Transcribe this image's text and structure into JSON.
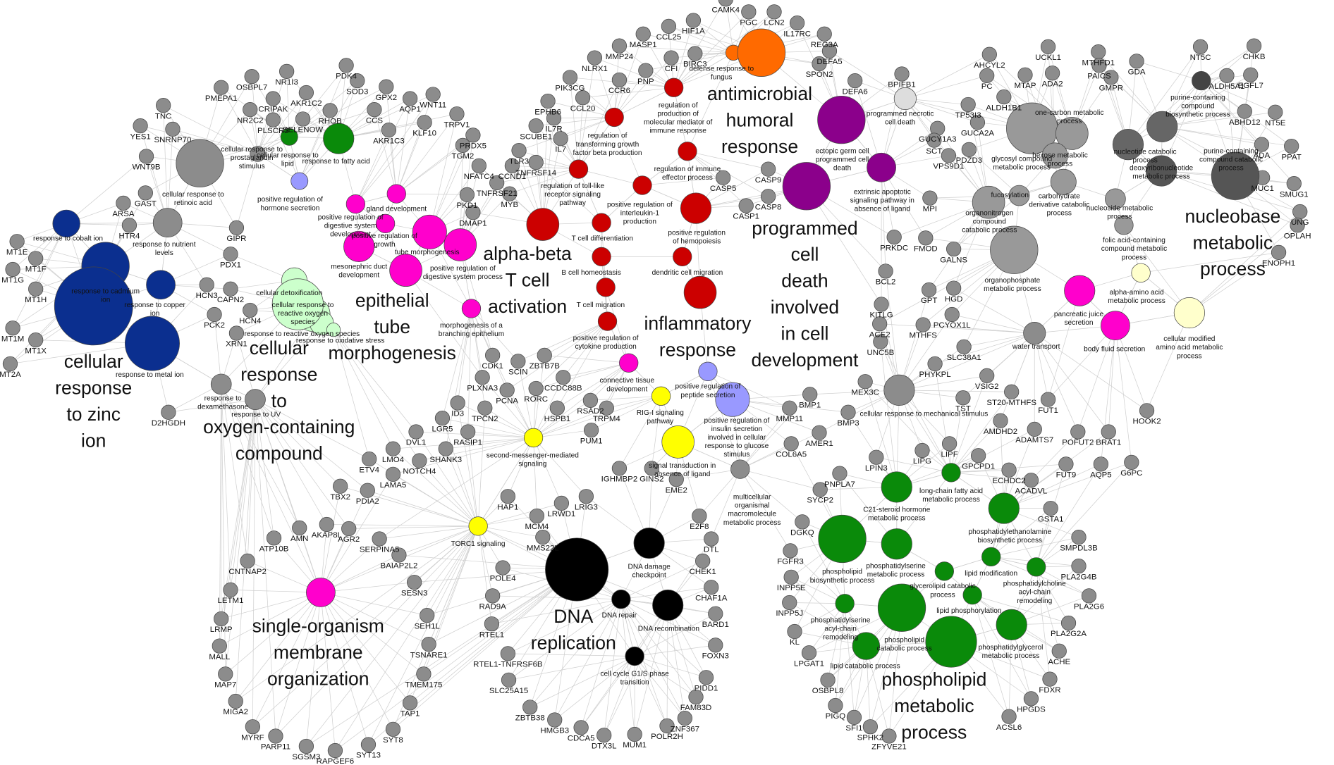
{
  "gene_color": "#8c8c8c",
  "clusters": [
    {
      "caption": [
        "cellular",
        "response",
        "to zinc",
        "ion"
      ],
      "color": "#0b2f8f"
    },
    {
      "caption": [
        "antimicrobial",
        "humoral",
        "response"
      ],
      "color": "#ff6a00"
    },
    {
      "caption": [
        "programmed",
        "cell",
        "death",
        "involved",
        "in cell",
        "development"
      ],
      "color": "#8b008b"
    },
    {
      "caption": [
        "alpha-beta",
        "T cell",
        "activation"
      ],
      "color": "#cc0000"
    },
    {
      "caption": [
        "inflammatory",
        "response"
      ],
      "color": "#cc0000"
    },
    {
      "caption": [
        "epithelial",
        "tube",
        "morphogenesis"
      ],
      "color": "#ff00cc"
    },
    {
      "caption": [
        "cellular",
        "response",
        "to",
        "oxygen-containing",
        "compound"
      ],
      "color": "#ccffcc"
    },
    {
      "caption": [
        "nucleobase",
        "metabolic",
        "process"
      ],
      "color": "#555555"
    },
    {
      "caption": [
        "DNA",
        "replication"
      ],
      "color": "#000000"
    },
    {
      "caption": [
        "single-organism",
        "membrane",
        "organization"
      ],
      "color": "#ff00cc"
    },
    {
      "caption": [
        "phospholipid",
        "metabolic",
        "process"
      ],
      "color": "#0a8a0a"
    }
  ],
  "terms": [
    {
      "label": [
        "response to cobalt ion"
      ],
      "color": "#0b2f8f"
    },
    {
      "label": [
        "response to cadmium",
        "ion"
      ],
      "color": "#0b2f8f"
    },
    {
      "label": [
        "response to copper",
        "ion"
      ],
      "color": "#0b2f8f"
    },
    {
      "label": [
        "response to metal ion"
      ],
      "color": "#0b2f8f"
    },
    {
      "label": [
        "cellular detoxification"
      ],
      "color": "#ccffcc"
    },
    {
      "label": [
        "cellular response to",
        "reactive oxygen",
        "species"
      ],
      "color": "#ccffcc"
    },
    {
      "label": [
        "response to reactive oxygen species"
      ],
      "color": "#ccffcc"
    },
    {
      "label": [
        "response to oxidative stress"
      ],
      "color": "#ccffcc"
    },
    {
      "label": [
        "positive regulation of",
        "hormone secretion"
      ],
      "color": "#9999ff"
    },
    {
      "label": [
        "positive regulation of",
        "peptide secretion"
      ],
      "color": "#9999ff"
    },
    {
      "label": [
        "positive regulation of",
        "insulin secretion",
        "involved in cellular",
        "response to glucose",
        "stimulus"
      ],
      "color": "#9999ff"
    },
    {
      "label": [
        "cellular response to",
        "lipid"
      ],
      "color": "#0a8a0a"
    },
    {
      "label": [
        "response to fatty acid"
      ],
      "color": "#0a8a0a"
    },
    {
      "label": [
        "gland development"
      ],
      "color": "#ff00cc"
    },
    {
      "label": [
        "positive regulation of",
        "digestive system",
        "development"
      ],
      "color": "#ff00cc"
    },
    {
      "label": [
        "positive regulation of",
        "growth"
      ],
      "color": "#ff00cc"
    },
    {
      "label": [
        "tube morphogenesis"
      ],
      "color": "#ff00cc"
    },
    {
      "label": [
        "mesonephric duct",
        "development"
      ],
      "color": "#ff00cc"
    },
    {
      "label": [
        "positive regulation of",
        "digestive system process"
      ],
      "color": "#ff00cc"
    },
    {
      "label": [
        "morphogenesis of a",
        "branching epithelium"
      ],
      "color": "#ff00cc"
    },
    {
      "label": [
        "connective tissue",
        "development"
      ],
      "color": "#ff00cc"
    },
    {
      "label": [
        "pancreatic juice",
        "secretion"
      ],
      "color": "#ff00cc"
    },
    {
      "label": [
        "body fluid secretion"
      ],
      "color": "#ff00cc"
    },
    {
      "label": [
        "regulation of",
        "production of",
        "molecular mediator of",
        "immune response"
      ],
      "color": "#cc0000"
    },
    {
      "label": [
        "regulation of",
        "transforming growth",
        "factor beta production"
      ],
      "color": "#cc0000"
    },
    {
      "label": [
        "regulation of immune",
        "effector process"
      ],
      "color": "#cc0000"
    },
    {
      "label": [
        "regulation of toll-like",
        "receptor signaling",
        "pathway"
      ],
      "color": "#cc0000"
    },
    {
      "label": [
        "positive regulation of",
        "interleukin-1",
        "production"
      ],
      "color": "#cc0000"
    },
    {
      "label": [
        "positive regulation",
        "of hemopoiesis"
      ],
      "color": "#cc0000"
    },
    {
      "label": [
        "T cell differentiation"
      ],
      "color": "#cc0000"
    },
    {
      "label": [
        "B cell homeostasis"
      ],
      "color": "#cc0000"
    },
    {
      "label": [
        "dendritic cell migration"
      ],
      "color": "#cc0000"
    },
    {
      "label": [
        "T cell migration"
      ],
      "color": "#cc0000"
    },
    {
      "label": [
        "positive regulation of",
        "cytokine production"
      ],
      "color": "#cc0000"
    },
    {
      "label": [
        "defense response to",
        "fungus"
      ],
      "color": "#ff6a00"
    },
    {
      "label": [
        "ectopic germ cell",
        "programmed cell",
        "death"
      ],
      "color": "#8b008b"
    },
    {
      "label": [
        "extrinsic apoptotic",
        "signaling pathway in",
        "absence of ligand"
      ],
      "color": "#8b008b"
    },
    {
      "label": [
        "programmed necrotic",
        "cell death"
      ],
      "color": "#dddddd"
    },
    {
      "label": [
        "cellular response to",
        "retinoic acid"
      ],
      "color": "#8c8c8c"
    },
    {
      "label": [
        "cellular response to",
        "prostaglandin",
        "stimulus"
      ],
      "color": "#8c8c8c"
    },
    {
      "label": [
        "response to nutrient",
        "levels"
      ],
      "color": "#8c8c8c"
    },
    {
      "label": [
        "response to",
        "dexamethasone"
      ],
      "color": "#8c8c8c"
    },
    {
      "label": [
        "response to UV"
      ],
      "color": "#8c8c8c"
    },
    {
      "label": [
        "cellular response to mechanical stimulus"
      ],
      "color": "#8c8c8c"
    },
    {
      "label": [
        "water transport"
      ],
      "color": "#8c8c8c"
    },
    {
      "label": [
        "multicellular",
        "organismal",
        "macromolecule",
        "metabolic process"
      ],
      "color": "#8c8c8c"
    },
    {
      "label": [
        "glycosyl compound",
        "metabolic process"
      ],
      "color": "#999999"
    },
    {
      "label": [
        "one-carbon metabolic",
        "process"
      ],
      "color": "#999999"
    },
    {
      "label": [
        "hexose metabolic",
        "process"
      ],
      "color": "#999999"
    },
    {
      "label": [
        "carbohydrate",
        "derivative catabolic",
        "process"
      ],
      "color": "#999999"
    },
    {
      "label": [
        "organonitrogen",
        "compound",
        "catabolic process"
      ],
      "color": "#999999"
    },
    {
      "label": [
        "fucosylation"
      ],
      "color": "#999999"
    },
    {
      "label": [
        "organophosphate",
        "metabolic process"
      ],
      "color": "#999999"
    },
    {
      "label": [
        "folic acid-containing",
        "compound metabolic",
        "process"
      ],
      "color": "#999999"
    },
    {
      "label": [
        "nucleoside metabolic",
        "process"
      ],
      "color": "#999999"
    },
    {
      "label": [
        "nucleotide catabolic",
        "process"
      ],
      "color": "#666666"
    },
    {
      "label": [
        "deoxyribonucleotide",
        "metabolic process"
      ],
      "color": "#555555"
    },
    {
      "label": [
        "purine-containing",
        "compound",
        "biosynthetic process"
      ],
      "color": "#444444"
    },
    {
      "label": [
        "purine-containing",
        "compound catabolic",
        "process"
      ],
      "color": "#666666"
    },
    {
      "label": [
        "alpha-amino acid",
        "metabolic process"
      ],
      "color": "#ffffcc"
    },
    {
      "label": [
        "cellular modified",
        "amino acid metabolic",
        "process"
      ],
      "color": "#ffffcc"
    },
    {
      "label": [
        "RIG-I signaling",
        "pathway"
      ],
      "color": "#ffff00"
    },
    {
      "label": [
        "second-messenger-mediated",
        "signaling"
      ],
      "color": "#ffff00"
    },
    {
      "label": [
        "signal transduction in",
        "absence of ligand"
      ],
      "color": "#ffff00"
    },
    {
      "label": [
        "TORC1 signaling"
      ],
      "color": "#ffff00"
    },
    {
      "label": [
        "DNA damage",
        "checkpoint"
      ],
      "color": "#000000"
    },
    {
      "label": [
        "DNA repair"
      ],
      "color": "#000000"
    },
    {
      "label": [
        "DNA recombination"
      ],
      "color": "#000000"
    },
    {
      "label": [
        "cell cycle G1/S phase",
        "transition"
      ],
      "color": "#000000"
    },
    {
      "label": [
        "long-chain fatty acid",
        "metabolic process"
      ],
      "color": "#0a8a0a"
    },
    {
      "label": [
        "C21-steroid hormone",
        "metabolic process"
      ],
      "color": "#0a8a0a"
    },
    {
      "label": [
        "phosphatidylethanolamine",
        "biosynthetic process"
      ],
      "color": "#0a8a0a"
    },
    {
      "label": [
        "phospholipid",
        "biosynthetic process"
      ],
      "color": "#0a8a0a"
    },
    {
      "label": [
        "phosphatidylserine",
        "metabolic process"
      ],
      "color": "#0a8a0a"
    },
    {
      "label": [
        "lipid modification"
      ],
      "color": "#0a8a0a"
    },
    {
      "label": [
        "glycerolipid catabolic",
        "process"
      ],
      "color": "#0a8a0a"
    },
    {
      "label": [
        "phosphatidylcholine",
        "acyl-chain",
        "remodeling"
      ],
      "color": "#0a8a0a"
    },
    {
      "label": [
        "lipid phosphorylation"
      ],
      "color": "#0a8a0a"
    },
    {
      "label": [
        "phosphatidylserine",
        "acyl-chain",
        "remodeling"
      ],
      "color": "#0a8a0a"
    },
    {
      "label": [
        "phospholipid",
        "catabolic process"
      ],
      "color": "#0a8a0a"
    },
    {
      "label": [
        "phosphatidylglycerol",
        "metabolic process"
      ],
      "color": "#0a8a0a"
    },
    {
      "label": [
        "lipid catabolic process"
      ],
      "color": "#0a8a0a"
    }
  ],
  "genes": [
    "CAMK4",
    "PGC",
    "LCN2",
    "IL17RC",
    "HIF1A",
    "CCL25",
    "MASP1",
    "MMP24",
    "REG3A",
    "DEFA5",
    "SPON2",
    "NLRX1",
    "CFI",
    "BIRC3",
    "PNP",
    "CCR6",
    "PIK3CG",
    "BPIFB1",
    "DEFA6",
    "EPHB6",
    "CCL20",
    "IL7R",
    "SCUBE1",
    "IL7",
    "TLR3",
    "TNFRSF14",
    "CCND1",
    "TNFRSF21",
    "NFATC4",
    "MYB",
    "PKD1",
    "DMAP1",
    "TGM2",
    "PRDX5",
    "TRPV1",
    "WNT11",
    "KLF10",
    "AQP1",
    "GPX2",
    "SOD3",
    "PDK4",
    "CCS",
    "AKR1C3",
    "RHOB",
    "NR1I3",
    "AKR1C2",
    "OSBPL7",
    "CRIPAK",
    "PMEPA1",
    "SELENOW",
    "NR2C2",
    "PLSCR3",
    "TNC",
    "YES1",
    "SNRNP70",
    "WNT9B",
    "GAST",
    "ARSA",
    "HTR4",
    "GIPR",
    "PDX1",
    "HCN3",
    "CAPN2",
    "PCK2",
    "HCN4",
    "XRN1",
    "MT1E",
    "MT1F",
    "MT1G",
    "MT1H",
    "MT1M",
    "MT1X",
    "MT2A",
    "D2HGDH",
    "CASP5",
    "CASP9",
    "CASP8",
    "CASP1",
    "TP53I3",
    "GUCY1A3",
    "GUCA2A",
    "SCT",
    "PDZD3",
    "VPS9D1",
    "MPI",
    "ALDH1B1",
    "PC",
    "AHCYL2",
    "MTAP",
    "UCKL1",
    "ADA2",
    "MTHFD1",
    "PAICS",
    "GMPR",
    "GDA",
    "NT5C",
    "CHKB",
    "ALDH5A1",
    "EGFL7",
    "ABHD12",
    "NT5E",
    "ADA",
    "PPAT",
    "MUC1",
    "SMUG1",
    "UNG",
    "OPLAH",
    "ENOPH1",
    "PRKDC",
    "FMOD",
    "GALNS",
    "BCL2",
    "GPT",
    "HGD",
    "PCYOX1L",
    "MTHFS",
    "KITLG",
    "ACE2",
    "UNC5B",
    "CDK1",
    "SCIN",
    "ZBTB7B",
    "CCDC88B",
    "PLXNA3",
    "PCNA",
    "RORC",
    "HSPB1",
    "RSAD2",
    "TRPM4",
    "PUM1",
    "TPCN2",
    "ID3",
    "LGR5",
    "RASIP1",
    "DVL1",
    "SHANK3",
    "LMO4",
    "NOTCH4",
    "ETV4",
    "LAMA5",
    "TBX2",
    "PDIA2",
    "MEX3C",
    "BMP1",
    "MMP11",
    "BMP3",
    "AMER1",
    "COL6A5",
    "PHYKPL",
    "SLC38A1",
    "VSIG2",
    "TST",
    "ST20-MTHFS",
    "FUT1",
    "AMDHD2",
    "ADAMTS7",
    "POFUT2",
    "BRAT1",
    "HOOK2",
    "FUT9",
    "AQP5",
    "G6PC",
    "LIPG",
    "LIPF",
    "LPIN3",
    "PNPLA7",
    "GPCPD1",
    "ECHDC2",
    "ACADVL",
    "GSTA1",
    "SMPDL3B",
    "SYCP2",
    "DGKQ",
    "FGFR3",
    "INPP5E",
    "INPP5J",
    "KL",
    "LPGAT1",
    "OSBPL8",
    "PIGQ",
    "SFI1",
    "SPHK2",
    "ZFYVE21",
    "PLA2G4B",
    "PLA2G6",
    "PLA2G2A",
    "ACHE",
    "FDXR",
    "HPGDS",
    "ACSL6",
    "HAP1",
    "LRWD1",
    "LRIG3",
    "MCM4",
    "IGHMBP2",
    "GINS2",
    "EME2",
    "E2F8",
    "DTL",
    "CHEK1",
    "CHAF1A",
    "BARD1",
    "FOXN3",
    "PIDD1",
    "FAM83D",
    "ZNF367",
    "POLR2H",
    "MUM1",
    "DTX3L",
    "CDCA5",
    "HMGB3",
    "ZBTB38",
    "SLC25A15",
    "RTEL1-TNFRSF6B",
    "RTEL1",
    "RAD9A",
    "POLE4",
    "MMS22L",
    "AKAP8L",
    "AMN",
    "AGR2",
    "ATP10B",
    "SERPINA5",
    "BAIAP2L2",
    "CNTNAP2",
    "SESN3",
    "LETM1",
    "SEH1L",
    "LRMP",
    "TSNARE1",
    "MALL",
    "TMEM175",
    "MAP7",
    "TAP1",
    "MIGA2",
    "SYT8",
    "MYRF",
    "SYT13",
    "PARP11",
    "RAPGEF6",
    "SGSM3"
  ]
}
